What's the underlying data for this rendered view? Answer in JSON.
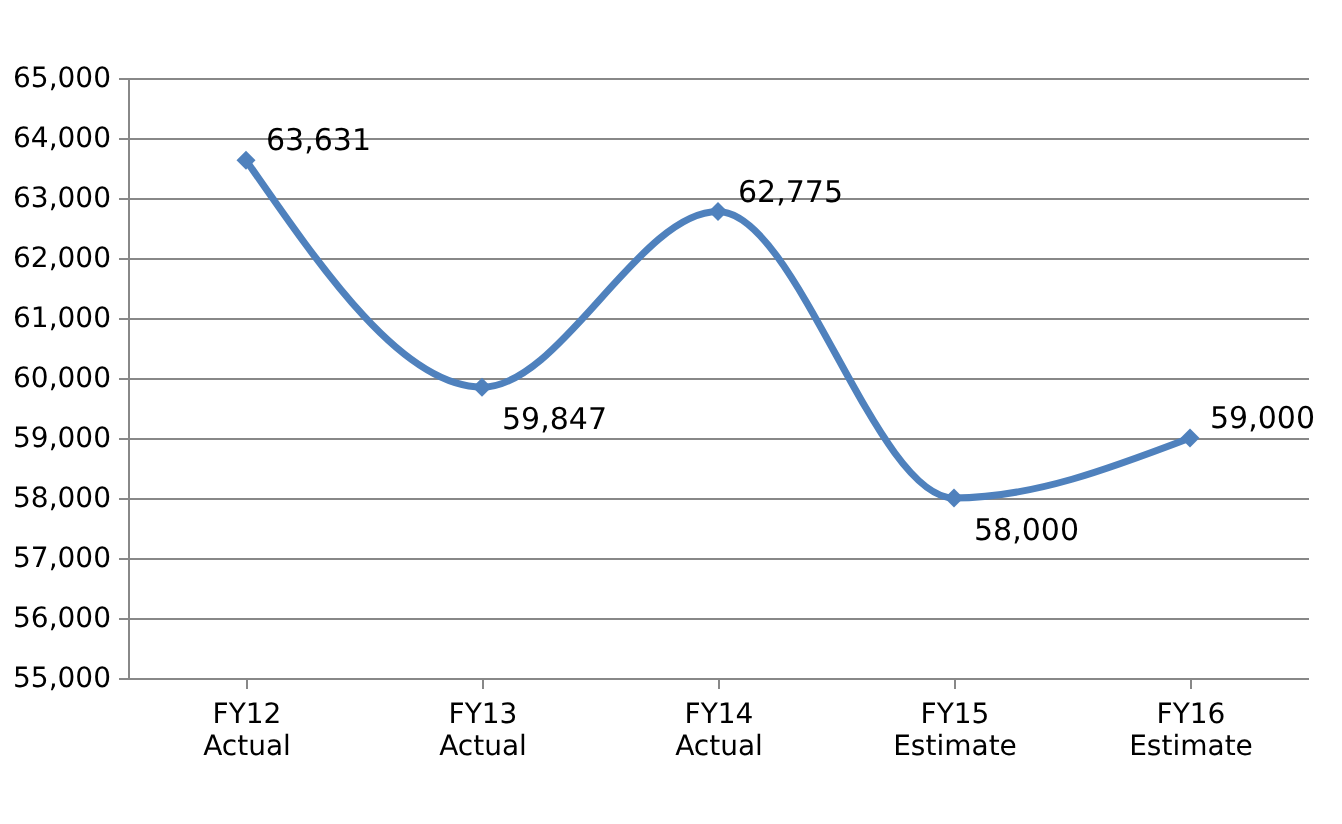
{
  "chart_data": {
    "type": "line",
    "categories": [
      "FY12\nActual",
      "FY13\nActual",
      "FY14\nActual",
      "FY15\nEstimate",
      "FY16\nEstimate"
    ],
    "series": [
      {
        "color": "#4f81bd",
        "values": [
          63631,
          59847,
          62775,
          58000,
          59000
        ],
        "value_labels": [
          "63,631",
          "59,847",
          "62,775",
          "58,000",
          "59,000"
        ]
      }
    ],
    "ylim": [
      55000,
      65000
    ],
    "yticks": [
      {
        "value": 55000,
        "label": "55,000"
      },
      {
        "value": 56000,
        "label": "56,000"
      },
      {
        "value": 57000,
        "label": "57,000"
      },
      {
        "value": 58000,
        "label": "58,000"
      },
      {
        "value": 59000,
        "label": "59,000"
      },
      {
        "value": 60000,
        "label": "60,000"
      },
      {
        "value": 61000,
        "label": "61,000"
      },
      {
        "value": 62000,
        "label": "62,000"
      },
      {
        "value": 63000,
        "label": "63,000"
      },
      {
        "value": 64000,
        "label": "64,000"
      },
      {
        "value": 65000,
        "label": "65,000"
      }
    ],
    "grid": "y",
    "marker": "diamond",
    "legend": false
  }
}
